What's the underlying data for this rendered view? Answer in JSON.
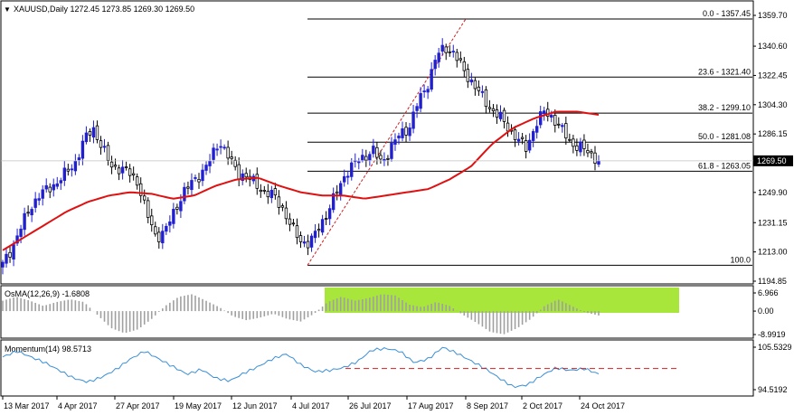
{
  "colors": {
    "bull_candle": "#2020d0",
    "bear_candle": "#000000",
    "sma": "#e01010",
    "fib_line": "#000000",
    "trend_line": "#d02020",
    "osma_bar": "#a0a0a0",
    "osma_highlight": "#a8e63c",
    "momentum_line": "#3a8fd8",
    "momentum_level": "#d02020",
    "price_tag_bg": "#000000"
  },
  "main_panel": {
    "title": "XAUUSD,Daily  1272.45 1273.85 1269.30 1269.50",
    "collapse_icon": "triangle-down-icon",
    "current_price": "1269.50",
    "y_ticks": [
      "1359.70",
      "1340.60",
      "1322.45",
      "1304.30",
      "1286.15",
      "1269.50",
      "1249.90",
      "1231.15",
      "1213.00",
      "1194.85"
    ],
    "fib_levels": [
      {
        "label": "0.0 - 1357.45",
        "price": 1357.45
      },
      {
        "label": "23.6 - 1321.40",
        "price": 1321.4
      },
      {
        "label": "38.2 - 1299.10",
        "price": 1299.1
      },
      {
        "label": "50.0 - 1281.08",
        "price": 1281.08
      },
      {
        "label": "61.8 - 1263.05",
        "price": 1263.05
      },
      {
        "label": "100.0",
        "price": 1204.7
      }
    ]
  },
  "osma_panel": {
    "title": "OsMA(12,26,9) -1.6808",
    "y_ticks": [
      "6.966",
      "0.00",
      "-8.9919"
    ]
  },
  "momentum_panel": {
    "title": "Momentum(14) 98.5713",
    "y_ticks": [
      "105.5329",
      "94.5192"
    ]
  },
  "x_axis": {
    "dates": [
      "13 Mar 2017",
      "4 Apr 2017",
      "27 Apr 2017",
      "19 May 2017",
      "12 Jun 2017",
      "4 Jul 2017",
      "26 Jul 2017",
      "17 Aug 2017",
      "8 Sep 2017",
      "2 Oct 2017",
      "24 Oct 2017"
    ]
  },
  "chart_data": {
    "type": "candlestick",
    "title": "XAUUSD,Daily",
    "ohlc_last": {
      "open": 1272.45,
      "high": 1273.85,
      "low": 1269.3,
      "close": 1269.5
    },
    "ylim": [
      1194.85,
      1359.7
    ],
    "x": [
      "13 Mar 2017",
      "4 Apr 2017",
      "27 Apr 2017",
      "19 May 2017",
      "12 Jun 2017",
      "4 Jul 2017",
      "26 Jul 2017",
      "17 Aug 2017",
      "8 Sep 2017",
      "2 Oct 2017",
      "24 Oct 2017"
    ],
    "close_path": [
      1205,
      1215,
      1228,
      1240,
      1248,
      1252,
      1256,
      1262,
      1268,
      1282,
      1290,
      1278,
      1266,
      1265,
      1262,
      1256,
      1236,
      1222,
      1226,
      1238,
      1250,
      1256,
      1262,
      1270,
      1282,
      1272,
      1262,
      1260,
      1255,
      1250,
      1248,
      1240,
      1228,
      1220,
      1218,
      1228,
      1238,
      1250,
      1262,
      1268,
      1272,
      1276,
      1268,
      1278,
      1286,
      1290,
      1306,
      1316,
      1334,
      1340,
      1336,
      1326,
      1318,
      1310,
      1302,
      1297,
      1290,
      1283,
      1277,
      1292,
      1300,
      1296,
      1288,
      1280,
      1278,
      1274,
      1270
    ],
    "sma_close_path": [
      1214,
      1222,
      1230,
      1238,
      1244,
      1248,
      1250,
      1249,
      1246,
      1248,
      1254,
      1258,
      1259,
      1254,
      1250,
      1248,
      1248,
      1246,
      1248,
      1250,
      1252,
      1258,
      1266,
      1280,
      1290,
      1296,
      1300,
      1300,
      1298
    ],
    "osma": [
      4.0,
      5.5,
      4.0,
      2.0,
      3.5,
      4.5,
      3.5,
      -1.5,
      -6.5,
      -8.5,
      -7.0,
      -3.0,
      2.0,
      5.5,
      6.5,
      4.0,
      1.5,
      -2.0,
      -3.5,
      -2.5,
      -1.0,
      -3.0,
      -4.0,
      -1.0,
      3.5,
      5.5,
      4.0,
      5.0,
      6.5,
      6.0,
      2.5,
      1.5,
      3.5,
      2.0,
      -1.5,
      -4.5,
      -8.0,
      -8.9,
      -6.5,
      -3.0,
      2.0,
      4.5,
      2.0,
      -0.5,
      -1.68
    ],
    "momentum": [
      103,
      104.5,
      103,
      101.5,
      99.5,
      97.5,
      96.5,
      97.8,
      99.8,
      102.5,
      104.5,
      102.5,
      100.5,
      98.5,
      99.8,
      97.5,
      96.8,
      98.8,
      100.5,
      102.5,
      103.8,
      101,
      99.2,
      99.5,
      100.2,
      101.8,
      104.8,
      105.2,
      104.5,
      101.5,
      102.5,
      105.5,
      104,
      102,
      100,
      97.5,
      95.2,
      95.8,
      98.2,
      100.2,
      99.5,
      100,
      98.57
    ],
    "momentum_level": 100
  }
}
